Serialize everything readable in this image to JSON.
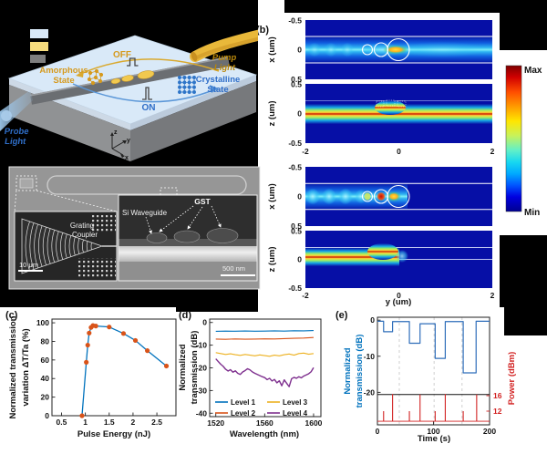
{
  "colors": {
    "matlab_blue": "#0072BD",
    "matlab_orange": "#D95319",
    "matlab_yellow": "#EDB120",
    "matlab_purple": "#7E2F8E",
    "power_red": "#D22222",
    "accent_gold": "#D69A1E",
    "accent_blue": "#2F6EC8",
    "heatmap_bg": "#060FA6"
  },
  "panel_a": {
    "off": "OFF",
    "on": "ON",
    "amorphous_line1": "Amorphous",
    "amorphous_line2": "State",
    "crystalline_line1": "Crystalline",
    "crystalline_line2": "State",
    "pump_line1": "Pump",
    "pump_line2": "Light",
    "probe_line1": "Probe",
    "probe_line2": "Light",
    "axis_z": "z",
    "axis_y": "y",
    "axis_x": "x",
    "legend_swatches": [
      "#D9E9F8",
      "#F6DC7E",
      "#7E7E7E"
    ]
  },
  "panel_b": {
    "label": "(b)",
    "ylabel_x": "x (um)",
    "ylabel_z": "z (um)",
    "xlabel": "y (um)",
    "xtick_labels": [
      "-2",
      "0",
      "2"
    ],
    "xplot_ytick_labels": [
      "-0.5",
      "0",
      "0.5"
    ],
    "zplot_ytick_labels": [
      "0.5",
      "0",
      "-0.5"
    ],
    "colorbar_max": "Max",
    "colorbar_min": "Min"
  },
  "panel_sem": {
    "grating_line1": "Grating",
    "grating_line2": "Coupler",
    "scale_left": "10 μm",
    "si_waveguide": "Si Waveguide",
    "gst": "GST",
    "scale_right": "500 nm"
  },
  "panel_labels": {
    "c": "(c)",
    "d": "(d)",
    "e": "(e)"
  },
  "chart_data": [
    {
      "id": "c",
      "type": "scatter",
      "xlabel": "Pulse Energy (nJ)",
      "ylabel_lines": [
        "Normalized transmission",
        "variation ΔT/Ta (%)"
      ],
      "xlim": [
        0.3,
        2.9
      ],
      "ylim": [
        0,
        104
      ],
      "xticks": [
        0.5,
        1,
        1.5,
        2,
        2.5
      ],
      "xtick_labels": [
        "0.5",
        "1",
        "1.5",
        "2",
        "2.5"
      ],
      "yticks": [
        0,
        20,
        40,
        60,
        80,
        100
      ],
      "ytick_labels": [
        "0",
        "20",
        "40",
        "60",
        "80",
        "100"
      ],
      "line_color": "#0072BD",
      "marker_color": "#D95319",
      "points": [
        [
          0.93,
          0
        ],
        [
          1.02,
          57.5
        ],
        [
          1.05,
          76
        ],
        [
          1.08,
          89
        ],
        [
          1.12,
          95
        ],
        [
          1.16,
          97
        ],
        [
          1.22,
          96.5
        ],
        [
          1.5,
          95.5
        ],
        [
          1.8,
          88.5
        ],
        [
          2.05,
          81
        ],
        [
          2.3,
          70
        ],
        [
          2.7,
          53.5
        ]
      ]
    },
    {
      "id": "d",
      "type": "line",
      "xlabel": "Wavelength (nm)",
      "ylabel_lines": [
        "Normalized",
        "transmission (dB)"
      ],
      "xlim": [
        1515,
        1606
      ],
      "ylim": [
        -41.5,
        1.5
      ],
      "xticks": [
        1520,
        1560,
        1600
      ],
      "xtick_labels": [
        "1520",
        "1560",
        "1600"
      ],
      "yticks": [
        0,
        -10,
        -20,
        -30,
        -40
      ],
      "ytick_labels": [
        "0",
        "-10",
        "-20",
        "-30",
        "-40"
      ],
      "legend_position": "bottom-inside",
      "series": [
        {
          "name": "Level 1",
          "color": "#0072BD",
          "x_start": 1520,
          "x_step": 8,
          "values": [
            -3.9,
            -3.8,
            -3.85,
            -3.75,
            -3.85,
            -3.8,
            -3.7,
            -3.8,
            -3.65,
            -3.7,
            -3.55
          ]
        },
        {
          "name": "Level 2",
          "color": "#D95319",
          "x_start": 1520,
          "x_step": 8,
          "values": [
            -7.3,
            -7.4,
            -7.25,
            -7.35,
            -7.3,
            -7.2,
            -7.25,
            -7.1,
            -6.95,
            -6.85,
            -6.6
          ]
        },
        {
          "name": "Level 3",
          "color": "#EDB120",
          "x_start": 1520,
          "x_step": 4,
          "values": [
            -13.3,
            -13.7,
            -14.1,
            -13.8,
            -14.2,
            -14.5,
            -14.1,
            -14.4,
            -14.7,
            -14.3,
            -14.6,
            -14.9,
            -14.4,
            -14.7,
            -14.2,
            -13.9,
            -14.4,
            -13.7,
            -13.5,
            -14.0,
            -13.7
          ]
        },
        {
          "name": "Level 4",
          "color": "#7E2F8E",
          "x_start": 1520,
          "x_step": 2,
          "values": [
            -16,
            -17.2,
            -18.4,
            -19.3,
            -20.6,
            -21.4,
            -20.8,
            -21.9,
            -21.3,
            -22.4,
            -22.9,
            -21.8,
            -21.2,
            -20.4,
            -20.9,
            -21.8,
            -22.4,
            -22.9,
            -23.4,
            -23.9,
            -24.3,
            -25.2,
            -24.6,
            -25.8,
            -25.1,
            -26.6,
            -25.7,
            -27.9,
            -25.3,
            -26.8,
            -28.3,
            -24.8,
            -24.2,
            -24.6,
            -23.9,
            -24.4,
            -23.6,
            -23.1,
            -22.6,
            -21.7,
            -19.9
          ]
        }
      ]
    },
    {
      "id": "e",
      "type": "step+spikes",
      "xlabel": "Time (s)",
      "ylabel_lines": [
        "Normalized",
        "transmission (dB)"
      ],
      "y2label": "Power (dBm)",
      "xlim": [
        0,
        200
      ],
      "ylim": [
        -29,
        0.8
      ],
      "xticks": [
        0,
        100,
        200
      ],
      "xtick_labels": [
        "0",
        "100",
        "200"
      ],
      "yticks": [
        0,
        -10,
        -20
      ],
      "ytick_labels": [
        "0",
        "-10",
        "-20"
      ],
      "y2ticks": [
        16,
        12
      ],
      "y2tick_labels": [
        "16",
        "12"
      ],
      "grid_t": [
        39,
        101,
        151
      ],
      "separator_dB": -20.6,
      "blue": "#2F6EBA",
      "red": "#D22222",
      "step_points": [
        [
          0,
          -0.3
        ],
        [
          11,
          -0.3
        ],
        [
          11,
          -3.2
        ],
        [
          27,
          -3.2
        ],
        [
          27,
          -0.4
        ],
        [
          57,
          -0.4
        ],
        [
          57,
          -6.4
        ],
        [
          76,
          -6.4
        ],
        [
          76,
          -1.0
        ],
        [
          103,
          -1.0
        ],
        [
          103,
          -10.6
        ],
        [
          121,
          -10.6
        ],
        [
          121,
          -0.4
        ],
        [
          153,
          -0.4
        ],
        [
          153,
          -14.6
        ],
        [
          176,
          -14.6
        ],
        [
          176,
          -0.3
        ],
        [
          200,
          -0.3
        ]
      ],
      "spikes_dBm": [
        [
          11,
          12
        ],
        [
          27,
          16.4
        ],
        [
          57,
          12
        ],
        [
          76,
          16.3
        ],
        [
          103,
          12
        ],
        [
          121,
          16.4
        ],
        [
          153,
          12
        ],
        [
          177,
          16.3
        ]
      ],
      "spike_baseline_dBm": 9.4
    },
    {
      "id": "b",
      "type": "heatmap",
      "xlabel": "y (um)",
      "xlim": [
        -2,
        2
      ],
      "xticks": [
        -2,
        0,
        2
      ],
      "panels": [
        {
          "view": "top",
          "ylabel": "x (um)",
          "ylim": [
            -0.5,
            0.5
          ],
          "yticks": [
            -0.5,
            0,
            0.5
          ]
        },
        {
          "view": "side",
          "ylabel": "z (um)",
          "ylim": [
            -0.5,
            0.5
          ],
          "yticks": [
            0.5,
            0,
            -0.5
          ]
        },
        {
          "view": "top",
          "ylabel": "x (um)",
          "ylim": [
            -0.5,
            0.5
          ],
          "yticks": [
            -0.5,
            0,
            0.5
          ]
        },
        {
          "view": "side",
          "ylabel": "z (um)",
          "ylim": [
            -0.5,
            0.5
          ],
          "yticks": [
            0.5,
            0,
            -0.5
          ]
        }
      ],
      "gst_disk_centers_um": [
        -0.67,
        -0.4,
        0.0
      ],
      "colorbar": {
        "max": "Max",
        "min": "Min"
      }
    }
  ]
}
